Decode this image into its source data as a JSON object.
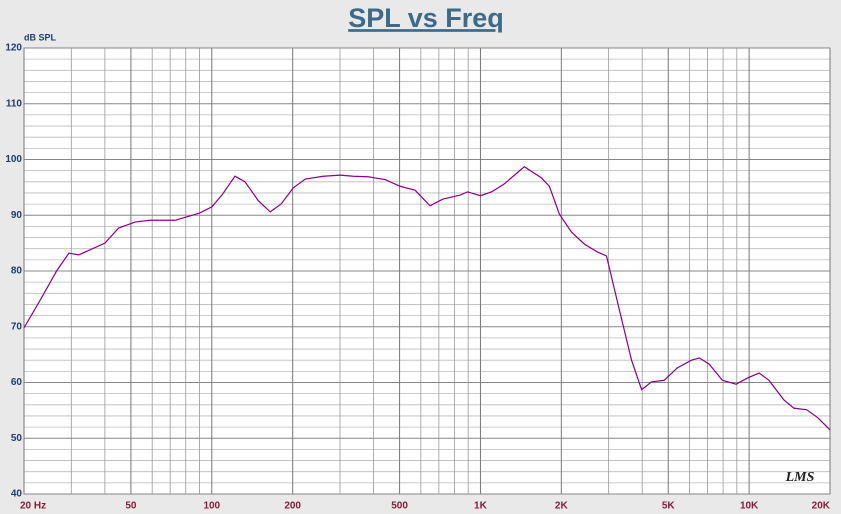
{
  "chart_data": {
    "type": "line",
    "title": "SPL vs Freq",
    "y_label": "dB SPL",
    "watermark": "LMS",
    "xscale": "log",
    "xlim": [
      20,
      20000
    ],
    "ylim": [
      40,
      120
    ],
    "xticks": [
      {
        "value": 20,
        "label": "20 Hz"
      },
      50,
      100,
      200,
      500,
      {
        "value": 1000,
        "label": "1K"
      },
      {
        "value": 2000,
        "label": "2K"
      },
      {
        "value": 5000,
        "label": "5K"
      },
      {
        "value": 10000,
        "label": "10K"
      },
      {
        "value": 20000,
        "label": "20K"
      }
    ],
    "x_minor_ticks": [
      30,
      40,
      60,
      70,
      80,
      90,
      300,
      400,
      600,
      700,
      800,
      900,
      3000,
      4000,
      6000,
      7000,
      8000,
      9000
    ],
    "yticks": [
      40,
      50,
      60,
      70,
      80,
      90,
      100,
      110,
      120
    ],
    "y_minor_ticks": [
      42,
      44,
      46,
      48,
      52,
      54,
      56,
      58,
      62,
      64,
      66,
      68,
      72,
      74,
      76,
      78,
      82,
      84,
      86,
      88,
      92,
      94,
      96,
      98,
      102,
      104,
      106,
      108,
      112,
      114,
      116,
      118
    ],
    "grid": true,
    "series": [
      {
        "color": "#8b008b",
        "x": [
          20,
          23,
          26.6,
          29.4,
          32,
          40,
          45,
          52,
          59,
          73,
          90,
          100,
          109,
          122,
          133,
          149,
          165,
          181,
          201,
          223,
          260,
          301,
          336,
          382,
          442,
          502,
          571,
          649,
          725,
          838,
          896,
          1000,
          1100,
          1225,
          1456,
          1686,
          1805,
          1967,
          2180,
          2440,
          2730,
          2945,
          3290,
          3650,
          3980,
          4330,
          4830,
          5400,
          6100,
          6530,
          7100,
          7950,
          8950,
          9840,
          10900,
          11850,
          13460,
          14660,
          16400,
          18100,
          20000
        ],
        "values": [
          69.8,
          74.8,
          80.2,
          83.2,
          82.9,
          85.0,
          87.7,
          88.8,
          89.1,
          89.1,
          90.4,
          91.5,
          93.6,
          97.0,
          96.0,
          92.6,
          90.6,
          92.0,
          94.9,
          96.5,
          97.0,
          97.2,
          97.0,
          96.9,
          96.4,
          95.2,
          94.5,
          91.7,
          92.9,
          93.6,
          94.2,
          93.5,
          94.2,
          95.6,
          98.7,
          96.7,
          95.2,
          90.2,
          87.0,
          84.8,
          83.4,
          82.7,
          73.0,
          64.0,
          58.7,
          60.1,
          60.4,
          62.6,
          64.0,
          64.4,
          63.3,
          60.4,
          59.7,
          60.8,
          61.7,
          60.4,
          56.9,
          55.4,
          55.1,
          53.6,
          51.5
        ]
      }
    ]
  }
}
